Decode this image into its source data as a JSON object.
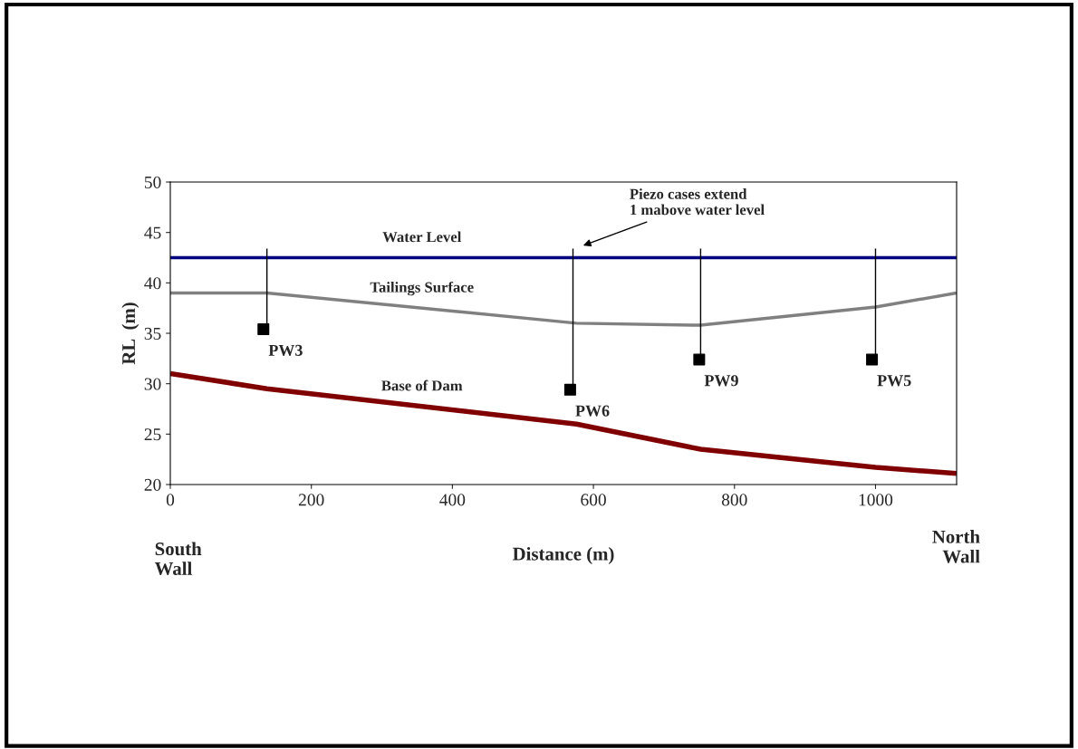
{
  "chart_data": {
    "type": "line",
    "xlabel": "Distance (m)",
    "ylabel": "RL  (m)",
    "xlim": [
      0,
      1115
    ],
    "xticks": [
      0,
      200,
      400,
      600,
      800,
      1000
    ],
    "ylim": [
      20,
      50
    ],
    "yticks": [
      20,
      25,
      30,
      35,
      40,
      45,
      50
    ],
    "grid": false,
    "legend": false,
    "series": [
      {
        "name": "Water Level",
        "color": "#000080",
        "x": [
          0,
          1115
        ],
        "values": [
          42.5,
          42.5
        ]
      },
      {
        "name": "Tailings Surface",
        "color": "#808080",
        "x": [
          0,
          137,
          576,
          752,
          1000,
          1115
        ],
        "values": [
          39.0,
          39.0,
          36.0,
          35.8,
          37.6,
          39.0
        ]
      },
      {
        "name": "Base of Dam",
        "color": "#800000",
        "x": [
          0,
          137,
          576,
          752,
          1000,
          1115
        ],
        "values": [
          31.0,
          29.5,
          26.0,
          23.5,
          21.7,
          21.1
        ]
      },
      {
        "type": "line",
        "color": "#000000",
        "x": [
          137,
          137
        ],
        "values": [
          43.4,
          35.4
        ]
      },
      {
        "type": "line",
        "color": "#000000",
        "x": [
          571,
          571
        ],
        "values": [
          43.4,
          29.4
        ]
      },
      {
        "type": "line",
        "color": "#000000",
        "x": [
          752,
          752
        ],
        "values": [
          43.4,
          32.4
        ]
      },
      {
        "type": "line",
        "color": "#000000",
        "x": [
          1000,
          1000
        ],
        "values": [
          43.4,
          32.4
        ]
      },
      {
        "type": "scatter",
        "marker": "square",
        "color": "#000000",
        "x": [
          132,
          567,
          750,
          995
        ],
        "values": [
          35.4,
          29.4,
          32.4,
          32.4
        ]
      }
    ],
    "annotations": [
      "Piezo cases extend\n1 mabove water level",
      {
        "text": "PW3",
        "x": 132,
        "y": 35.4
      },
      {
        "text": "PW6",
        "x": 567,
        "y": 29.4
      },
      {
        "text": "PW9",
        "x": 750,
        "y": 32.4
      },
      {
        "text": "PW5",
        "x": 995,
        "y": 32.4
      },
      "South\nWall",
      "North\nWall"
    ]
  }
}
